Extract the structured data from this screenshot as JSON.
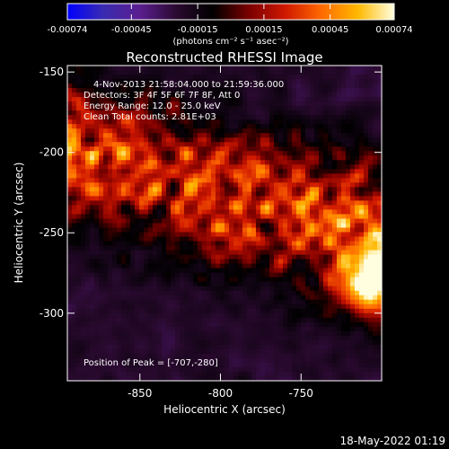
{
  "chart_data": {
    "type": "heatmap",
    "title": "Reconstructed RHESSI Image",
    "xlabel": "Heliocentric X (arcsec)",
    "ylabel": "Heliocentric Y (arcsec)",
    "xlim": [
      -895,
      -700
    ],
    "ylim": [
      -342,
      -146
    ],
    "x_ticks": [
      -850,
      -800,
      -750
    ],
    "y_ticks": [
      -150,
      -200,
      -250,
      -300
    ],
    "colorbar": {
      "min": -0.00074,
      "max": 0.00074,
      "tick_values": [
        -0.00074,
        -0.00045,
        -0.00015,
        0.00015,
        0.00045,
        0.00074
      ],
      "tick_labels": [
        "-0.00074",
        "-0.00045",
        "-0.00015",
        "0.00015",
        "0.00045",
        "0.00074"
      ],
      "unit_label": "(photons cm⁻² s⁻¹ asec⁻²)",
      "colormap": [
        "#0000ff",
        "#3a2bb0",
        "#5a1e8f",
        "#2a0a30",
        "#000000",
        "#7a0000",
        "#d01800",
        "#ff6a00",
        "#ffb800",
        "#ffffe0"
      ]
    },
    "info_lines": [
      "4-Nov-2013 21:58:04.000 to 21:59:36.000",
      "Detectors: 3F 4F 5F 6F 7F 8F, Att 0",
      "Energy Range: 12.0 - 25.0 keV",
      "Clean     Total counts: 2.81E+03"
    ],
    "peak_label": "Position of Peak = [-707,-280]",
    "peak": [
      -707,
      -280
    ],
    "timestamp": "18-May-2022 01:19"
  }
}
